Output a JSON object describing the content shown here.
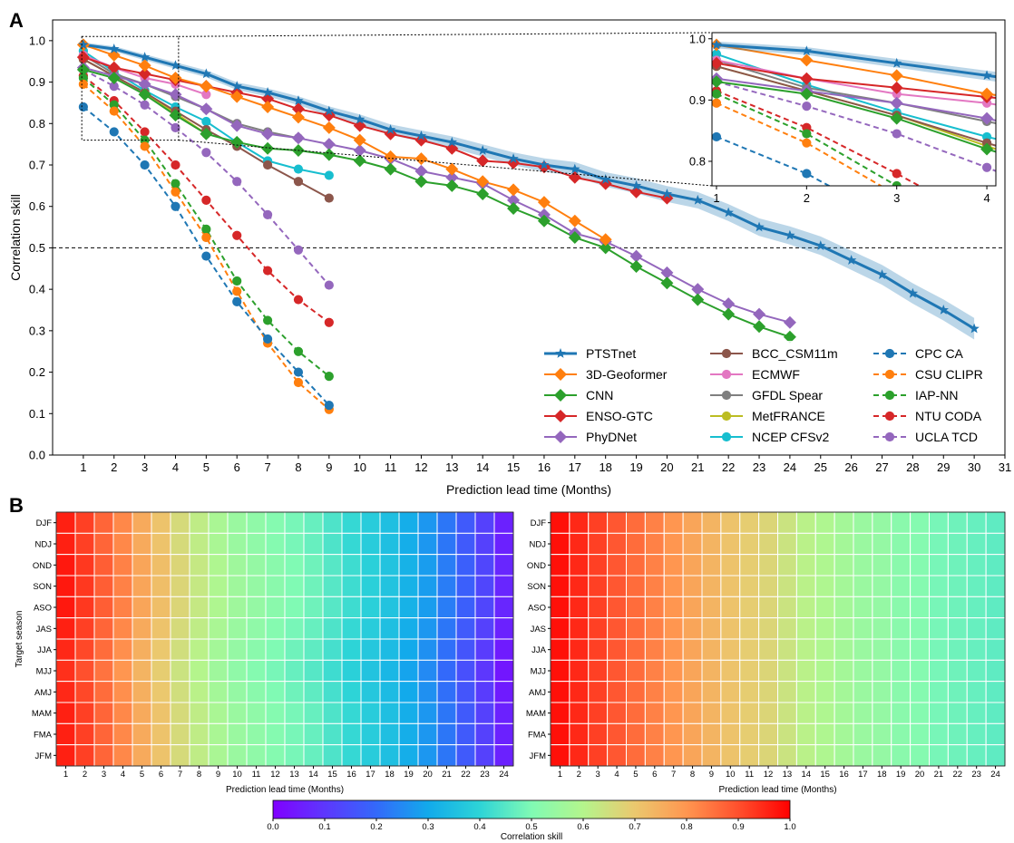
{
  "panel_labels": {
    "a": "A",
    "b": "B"
  },
  "colorbar": {
    "ticks": [
      "0.0",
      "0.1",
      "0.2",
      "0.3",
      "0.4",
      "0.5",
      "0.6",
      "0.7",
      "0.8",
      "0.9",
      "1.0"
    ],
    "label": "Correlation skill"
  },
  "chart_data": [
    {
      "type": "line",
      "panel": "A",
      "title": "",
      "xlabel": "Prediction lead time (Months)",
      "ylabel": "Correlation skill",
      "xlim": [
        0,
        31
      ],
      "ylim": [
        0,
        1.05
      ],
      "xticks": [
        "1",
        "2",
        "3",
        "4",
        "5",
        "6",
        "7",
        "8",
        "9",
        "10",
        "11",
        "12",
        "13",
        "14",
        "15",
        "16",
        "17",
        "18",
        "19",
        "20",
        "21",
        "22",
        "23",
        "24",
        "25",
        "26",
        "27",
        "28",
        "29",
        "30",
        "31"
      ],
      "yticks": [
        "0.0",
        "0.1",
        "0.2",
        "0.3",
        "0.4",
        "0.5",
        "0.6",
        "0.7",
        "0.8",
        "0.9",
        "1.0"
      ],
      "reference_line": 0.5,
      "grid": false,
      "legend_placement": "lower-right",
      "series": [
        {
          "name": "PTSTnet",
          "color": "#1f77b4",
          "marker": "star",
          "dashed": false,
          "band": true,
          "x": [
            1,
            2,
            3,
            4,
            5,
            6,
            7,
            8,
            9,
            10,
            11,
            12,
            13,
            14,
            15,
            16,
            17,
            18,
            19,
            20,
            21,
            22,
            23,
            24,
            25,
            26,
            27,
            28,
            29,
            30
          ],
          "values": [
            0.99,
            0.98,
            0.96,
            0.94,
            0.92,
            0.89,
            0.875,
            0.855,
            0.83,
            0.81,
            0.785,
            0.77,
            0.755,
            0.735,
            0.715,
            0.7,
            0.69,
            0.665,
            0.65,
            0.63,
            0.615,
            0.585,
            0.55,
            0.53,
            0.505,
            0.47,
            0.435,
            0.39,
            0.35,
            0.305
          ]
        },
        {
          "name": "3D-Geoformer",
          "color": "#ff7f0e",
          "marker": "diamond",
          "dashed": false,
          "x": [
            1,
            2,
            3,
            4,
            5,
            6,
            7,
            8,
            9,
            10,
            11,
            12,
            13,
            14,
            15,
            16,
            17,
            18
          ],
          "values": [
            0.99,
            0.965,
            0.94,
            0.91,
            0.89,
            0.865,
            0.84,
            0.815,
            0.79,
            0.76,
            0.72,
            0.715,
            0.69,
            0.66,
            0.64,
            0.61,
            0.565,
            0.52
          ]
        },
        {
          "name": "CNN",
          "color": "#2ca02c",
          "marker": "diamond",
          "dashed": false,
          "x": [
            1,
            2,
            3,
            4,
            5,
            6,
            7,
            8,
            9,
            10,
            11,
            12,
            13,
            14,
            15,
            16,
            17,
            18,
            19,
            20,
            21,
            22,
            23,
            24
          ],
          "values": [
            0.93,
            0.91,
            0.87,
            0.82,
            0.775,
            0.755,
            0.74,
            0.735,
            0.725,
            0.71,
            0.69,
            0.66,
            0.65,
            0.63,
            0.595,
            0.565,
            0.525,
            0.5,
            0.455,
            0.415,
            0.375,
            0.34,
            0.31,
            0.285
          ]
        },
        {
          "name": "ENSO-GTC",
          "color": "#d62728",
          "marker": "diamond",
          "dashed": false,
          "x": [
            1,
            2,
            3,
            4,
            5,
            6,
            7,
            8,
            9,
            10,
            11,
            12,
            13,
            14,
            15,
            16,
            17,
            18,
            19,
            20
          ],
          "values": [
            0.96,
            0.935,
            0.92,
            0.905,
            0.89,
            0.875,
            0.86,
            0.835,
            0.82,
            0.795,
            0.775,
            0.76,
            0.74,
            0.71,
            0.705,
            0.695,
            0.67,
            0.655,
            0.635,
            0.62
          ]
        },
        {
          "name": "PhyDNet",
          "color": "#9467bd",
          "marker": "diamond",
          "dashed": false,
          "x": [
            1,
            2,
            3,
            4,
            5,
            6,
            7,
            8,
            9,
            10,
            11,
            12,
            13,
            14,
            15,
            16,
            17,
            18,
            19,
            20,
            21,
            22,
            23,
            24
          ],
          "values": [
            0.935,
            0.915,
            0.895,
            0.87,
            0.835,
            0.795,
            0.775,
            0.765,
            0.75,
            0.735,
            0.715,
            0.685,
            0.67,
            0.655,
            0.615,
            0.58,
            0.535,
            0.515,
            0.48,
            0.44,
            0.4,
            0.365,
            0.34,
            0.32
          ]
        },
        {
          "name": "BCC_CSM11m",
          "color": "#8c564b",
          "marker": "circle",
          "dashed": false,
          "x": [
            1,
            2,
            3,
            4,
            5,
            6,
            7,
            8,
            9
          ],
          "values": [
            0.955,
            0.915,
            0.875,
            0.83,
            0.785,
            0.745,
            0.7,
            0.66,
            0.62
          ]
        },
        {
          "name": "ECMWF",
          "color": "#e377c2",
          "marker": "circle",
          "dashed": false,
          "x": [
            1,
            2,
            3,
            4,
            5
          ],
          "values": [
            0.965,
            0.935,
            0.91,
            0.895,
            0.87
          ]
        },
        {
          "name": "GFDL Spear",
          "color": "#7f7f7f",
          "marker": "circle",
          "dashed": false,
          "x": [
            1,
            2,
            3,
            4,
            5,
            6,
            7,
            8
          ],
          "values": [
            0.965,
            0.92,
            0.895,
            0.865,
            0.835,
            0.8,
            0.78,
            0.765
          ]
        },
        {
          "name": "MetFRANCE",
          "color": "#bcbd22",
          "marker": "circle",
          "dashed": false,
          "x": [
            1,
            2,
            3,
            4,
            5
          ],
          "values": [
            0.955,
            0.915,
            0.875,
            0.825,
            0.775
          ]
        },
        {
          "name": "NCEP CFSv2",
          "color": "#17becf",
          "marker": "circle",
          "dashed": false,
          "x": [
            1,
            2,
            3,
            4,
            5,
            6,
            7,
            8,
            9
          ],
          "values": [
            0.975,
            0.925,
            0.88,
            0.84,
            0.805,
            0.755,
            0.71,
            0.69,
            0.675
          ]
        },
        {
          "name": "CPC CA",
          "color": "#1f77b4",
          "marker": "circle",
          "dashed": true,
          "x": [
            1,
            2,
            3,
            4,
            5,
            6,
            7,
            8,
            9
          ],
          "values": [
            0.84,
            0.78,
            0.7,
            0.6,
            0.48,
            0.37,
            0.28,
            0.2,
            0.12
          ]
        },
        {
          "name": "CSU CLIPR",
          "color": "#ff7f0e",
          "marker": "circle",
          "dashed": true,
          "x": [
            1,
            2,
            3,
            4,
            5,
            6,
            7,
            8,
            9
          ],
          "values": [
            0.895,
            0.83,
            0.745,
            0.635,
            0.525,
            0.395,
            0.27,
            0.175,
            0.11
          ]
        },
        {
          "name": "IAP-NN",
          "color": "#2ca02c",
          "marker": "circle",
          "dashed": true,
          "x": [
            1,
            2,
            3,
            4,
            5,
            6,
            7,
            8,
            9
          ],
          "values": [
            0.91,
            0.845,
            0.76,
            0.655,
            0.545,
            0.42,
            0.325,
            0.25,
            0.19
          ]
        },
        {
          "name": "NTU CODA",
          "color": "#d62728",
          "marker": "circle",
          "dashed": true,
          "x": [
            1,
            2,
            3,
            4,
            5,
            6,
            7,
            8,
            9
          ],
          "values": [
            0.915,
            0.855,
            0.78,
            0.7,
            0.615,
            0.53,
            0.445,
            0.375,
            0.32
          ]
        },
        {
          "name": "UCLA TCD",
          "color": "#9467bd",
          "marker": "circle",
          "dashed": true,
          "x": [
            1,
            2,
            3,
            4,
            5,
            6,
            7,
            8,
            9
          ],
          "values": [
            0.93,
            0.89,
            0.845,
            0.79,
            0.73,
            0.66,
            0.58,
            0.495,
            0.41
          ]
        }
      ],
      "inset": {
        "xlim": [
          0.95,
          4.1
        ],
        "ylim": [
          0.76,
          1.01
        ],
        "xticks": [
          "1",
          "2",
          "3",
          "4"
        ],
        "yticks": [
          "0.8",
          "0.9",
          "1.0"
        ]
      }
    },
    {
      "type": "heatmap",
      "panel": "B-left",
      "xlabel": "Prediction lead time (Months)",
      "ylabel": "Target season",
      "rows": [
        "DJF",
        "NDJ",
        "OND",
        "SON",
        "ASO",
        "JAS",
        "JJA",
        "MJJ",
        "AMJ",
        "MAM",
        "FMA",
        "JFM"
      ],
      "columns": [
        "1",
        "2",
        "3",
        "4",
        "5",
        "6",
        "7",
        "8",
        "9",
        "10",
        "11",
        "12",
        "13",
        "14",
        "15",
        "16",
        "17",
        "18",
        "19",
        "20",
        "21",
        "22",
        "23",
        "24"
      ],
      "column_values": [
        0.96,
        0.92,
        0.87,
        0.82,
        0.76,
        0.71,
        0.66,
        0.62,
        0.58,
        0.55,
        0.53,
        0.51,
        0.49,
        0.47,
        0.44,
        0.41,
        0.38,
        0.35,
        0.31,
        0.27,
        0.22,
        0.17,
        0.12,
        0.06
      ],
      "row_offsets": [
        0.0,
        0.0,
        0.01,
        0.01,
        0.01,
        0.0,
        -0.01,
        -0.02,
        -0.01,
        0.0,
        0.0,
        0.0
      ],
      "colormap": "rainbow",
      "vmin": 0,
      "vmax": 1
    },
    {
      "type": "heatmap",
      "panel": "B-right",
      "xlabel": "Prediction lead time (Months)",
      "rows": [
        "DJF",
        "NDJ",
        "OND",
        "SON",
        "ASO",
        "JAS",
        "JJA",
        "MJJ",
        "AMJ",
        "MAM",
        "FMA",
        "JFM"
      ],
      "columns": [
        "1",
        "2",
        "3",
        "4",
        "5",
        "6",
        "7",
        "8",
        "9",
        "10",
        "11",
        "12",
        "13",
        "14",
        "15",
        "16",
        "17",
        "18",
        "19",
        "20",
        "21",
        "22",
        "23",
        "24"
      ],
      "column_values": [
        0.98,
        0.95,
        0.92,
        0.89,
        0.86,
        0.83,
        0.8,
        0.77,
        0.74,
        0.71,
        0.69,
        0.67,
        0.64,
        0.61,
        0.59,
        0.57,
        0.55,
        0.54,
        0.52,
        0.51,
        0.49,
        0.48,
        0.47,
        0.46
      ],
      "row_offsets": [
        0,
        0,
        0,
        0,
        0,
        0,
        0,
        0,
        0,
        0,
        0,
        0
      ],
      "colormap": "rainbow",
      "vmin": 0,
      "vmax": 1
    }
  ]
}
